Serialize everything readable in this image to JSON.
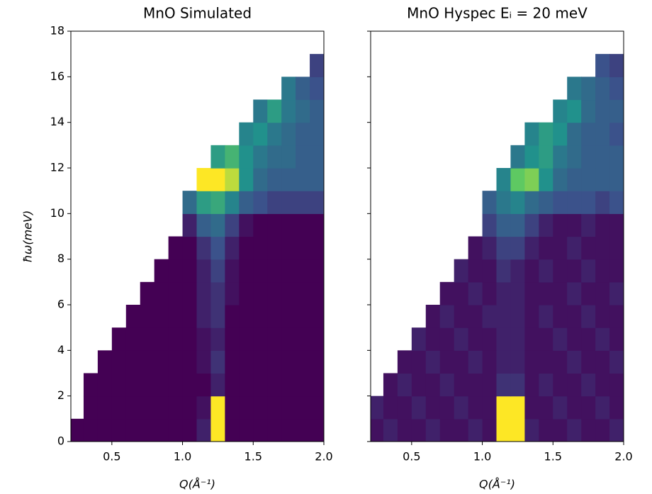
{
  "chart_data": [
    {
      "type": "heatmap",
      "title": "MnO Simulated",
      "xlabel": "Q(Å⁻¹)",
      "ylabel": "ħω(meV)",
      "colormap": "viridis",
      "xlim": [
        0.21,
        2.0
      ],
      "ylim": [
        0,
        18
      ],
      "xticks": [
        0.5,
        {
          "value": 1.0,
          "label": "1.0"
        },
        1.5,
        {
          "value": 2.0,
          "label": "2.0"
        }
      ],
      "yticks": [
        0,
        2,
        4,
        6,
        8,
        10,
        12,
        14,
        16,
        18
      ],
      "xbins": [
        0.2,
        0.3,
        0.4,
        0.5,
        0.6,
        0.7,
        0.8,
        0.9,
        1.0,
        1.1,
        1.2,
        1.3,
        1.4,
        1.5,
        1.6,
        1.7,
        1.8,
        1.9,
        2.0
      ],
      "ybins": [
        0,
        1,
        2,
        3,
        4,
        5,
        6,
        7,
        8,
        9,
        10,
        11,
        12,
        13,
        14,
        15,
        16,
        17,
        18
      ],
      "values": [
        [
          0,
          0,
          0,
          0,
          0,
          0,
          0,
          0,
          0,
          0.1,
          1,
          0,
          0,
          0,
          0,
          0,
          0,
          0
        ],
        [
          null,
          0,
          0,
          0,
          0,
          0,
          0,
          0,
          0,
          0.05,
          1,
          0,
          0,
          0,
          0,
          0,
          0,
          0
        ],
        [
          null,
          0,
          0,
          0,
          0,
          0,
          0,
          0,
          0,
          0,
          0.1,
          0,
          0,
          0,
          0,
          0,
          0,
          0
        ],
        [
          null,
          null,
          0,
          0,
          0,
          0,
          0,
          0,
          0,
          0.05,
          0.15,
          0,
          0,
          0,
          0,
          0,
          0,
          0
        ],
        [
          null,
          null,
          null,
          0,
          0,
          0,
          0,
          0,
          0,
          0.05,
          0.1,
          0,
          0,
          0,
          0,
          0,
          0,
          0
        ],
        [
          null,
          null,
          null,
          null,
          0,
          0,
          0,
          0,
          0,
          0.1,
          0.15,
          0,
          0,
          0,
          0,
          0,
          0,
          0
        ],
        [
          null,
          null,
          null,
          null,
          null,
          0,
          0,
          0,
          0,
          0.1,
          0.15,
          0.05,
          0,
          0,
          0,
          0,
          0,
          0
        ],
        [
          null,
          null,
          null,
          null,
          null,
          null,
          0,
          0,
          0,
          0.1,
          0.2,
          0.05,
          0,
          0,
          0,
          0,
          0,
          0
        ],
        [
          null,
          null,
          null,
          null,
          null,
          null,
          null,
          0,
          0,
          0.15,
          0.25,
          0.1,
          0,
          0,
          0,
          0,
          0,
          0
        ],
        [
          null,
          null,
          null,
          null,
          null,
          null,
          null,
          null,
          0.1,
          0.3,
          0.35,
          0.2,
          0.05,
          0,
          0,
          0,
          0,
          0
        ],
        [
          null,
          null,
          null,
          null,
          null,
          null,
          null,
          null,
          0.35,
          0.55,
          0.6,
          0.45,
          0.3,
          0.25,
          0.2,
          0.2,
          0.2,
          0.2
        ],
        [
          null,
          null,
          null,
          null,
          null,
          null,
          null,
          null,
          null,
          1,
          1,
          0.9,
          0.5,
          0.35,
          0.3,
          0.3,
          0.3,
          0.3
        ],
        [
          null,
          null,
          null,
          null,
          null,
          null,
          null,
          null,
          null,
          null,
          0.55,
          0.65,
          0.5,
          0.4,
          0.35,
          0.35,
          0.3,
          0.3
        ],
        [
          null,
          null,
          null,
          null,
          null,
          null,
          null,
          null,
          null,
          null,
          null,
          null,
          0.45,
          0.5,
          0.4,
          0.35,
          0.3,
          0.3
        ],
        [
          null,
          null,
          null,
          null,
          null,
          null,
          null,
          null,
          null,
          null,
          null,
          null,
          null,
          0.4,
          0.55,
          0.4,
          0.35,
          0.3
        ],
        [
          null,
          null,
          null,
          null,
          null,
          null,
          null,
          null,
          null,
          null,
          null,
          null,
          null,
          null,
          null,
          0.4,
          0.3,
          0.25
        ],
        [
          null,
          null,
          null,
          null,
          null,
          null,
          null,
          null,
          null,
          null,
          null,
          null,
          null,
          null,
          null,
          null,
          null,
          0.2
        ],
        [
          null,
          null,
          null,
          null,
          null,
          null,
          null,
          null,
          null,
          null,
          null,
          null,
          null,
          null,
          null,
          null,
          null,
          null
        ]
      ]
    },
    {
      "type": "heatmap",
      "title": "MnO Hyspec Eᵢ = 20 meV",
      "xlabel": "Q(Å⁻¹)",
      "colormap": "viridis",
      "sharey": true,
      "xlim": [
        0.21,
        2.0
      ],
      "ylim": [
        0,
        18
      ],
      "xticks": [
        0.5,
        {
          "value": 1.0,
          "label": "1.0"
        },
        1.5,
        {
          "value": 2.0,
          "label": "2.0"
        }
      ],
      "xbins": [
        0.2,
        0.3,
        0.4,
        0.5,
        0.6,
        0.7,
        0.8,
        0.9,
        1.0,
        1.1,
        1.2,
        1.3,
        1.4,
        1.5,
        1.6,
        1.7,
        1.8,
        1.9,
        2.0
      ],
      "ybins": [
        0,
        1,
        2,
        3,
        4,
        5,
        6,
        7,
        8,
        9,
        10,
        11,
        12,
        13,
        14,
        15,
        16,
        17,
        18
      ],
      "values": [
        [
          0.05,
          0.1,
          0.05,
          0.05,
          0.1,
          0.05,
          0.05,
          0.1,
          0.05,
          1,
          1,
          0.1,
          0.05,
          0.05,
          0.1,
          0.05,
          0.05,
          0.1
        ],
        [
          0.1,
          0.05,
          0.05,
          0.1,
          0.05,
          0.05,
          0.1,
          0.05,
          0.05,
          1,
          1,
          0.05,
          0.05,
          0.1,
          0.05,
          0.05,
          0.1,
          0.05
        ],
        [
          null,
          0.05,
          0.1,
          0.05,
          0.05,
          0.1,
          0.05,
          0.05,
          0.05,
          0.15,
          0.15,
          0.05,
          0.1,
          0.05,
          0.05,
          0.1,
          0.05,
          0.05
        ],
        [
          null,
          null,
          0.05,
          0.05,
          0.1,
          0.05,
          0.05,
          0.1,
          0.05,
          0.1,
          0.1,
          0.05,
          0.05,
          0.05,
          0.1,
          0.05,
          0.05,
          0.1
        ],
        [
          null,
          null,
          null,
          0.1,
          0.05,
          0.05,
          0.1,
          0.05,
          0.05,
          0.1,
          0.1,
          0.05,
          0.05,
          0.1,
          0.05,
          0.05,
          0.1,
          0.05
        ],
        [
          null,
          null,
          null,
          null,
          0.05,
          0.1,
          0.05,
          0.05,
          0.1,
          0.1,
          0.1,
          0.05,
          0.1,
          0.05,
          0.05,
          0.1,
          0.05,
          0.05
        ],
        [
          null,
          null,
          null,
          null,
          null,
          0.05,
          0.05,
          0.1,
          0.05,
          0.1,
          0.1,
          0.05,
          0.05,
          0.05,
          0.1,
          0.05,
          0.05,
          0.1
        ],
        [
          null,
          null,
          null,
          null,
          null,
          null,
          0.1,
          0.05,
          0.05,
          0.15,
          0.1,
          0.05,
          0.1,
          0.05,
          0.05,
          0.1,
          0.05,
          0.05
        ],
        [
          null,
          null,
          null,
          null,
          null,
          null,
          null,
          0.05,
          0.1,
          0.2,
          0.2,
          0.1,
          0.05,
          0.05,
          0.1,
          0.05,
          0.05,
          0.05
        ],
        [
          null,
          null,
          null,
          null,
          null,
          null,
          null,
          null,
          0.2,
          0.3,
          0.3,
          0.2,
          0.1,
          0.05,
          0.05,
          0.1,
          0.05,
          0.05
        ],
        [
          null,
          null,
          null,
          null,
          null,
          null,
          null,
          null,
          0.3,
          0.4,
          0.45,
          0.35,
          0.3,
          0.25,
          0.25,
          0.25,
          0.2,
          0.25
        ],
        [
          null,
          null,
          null,
          null,
          null,
          null,
          null,
          null,
          null,
          0.45,
          0.75,
          0.8,
          0.5,
          0.35,
          0.3,
          0.3,
          0.3,
          0.3
        ],
        [
          null,
          null,
          null,
          null,
          null,
          null,
          null,
          null,
          null,
          null,
          0.4,
          0.5,
          0.55,
          0.4,
          0.35,
          0.3,
          0.3,
          0.3
        ],
        [
          null,
          null,
          null,
          null,
          null,
          null,
          null,
          null,
          null,
          null,
          null,
          0.45,
          0.55,
          0.5,
          0.35,
          0.3,
          0.3,
          0.25
        ],
        [
          null,
          null,
          null,
          null,
          null,
          null,
          null,
          null,
          null,
          null,
          null,
          null,
          null,
          0.45,
          0.5,
          0.35,
          0.3,
          0.3
        ],
        [
          null,
          null,
          null,
          null,
          null,
          null,
          null,
          null,
          null,
          null,
          null,
          null,
          null,
          null,
          0.4,
          0.35,
          0.3,
          0.25
        ],
        [
          null,
          null,
          null,
          null,
          null,
          null,
          null,
          null,
          null,
          null,
          null,
          null,
          null,
          null,
          null,
          null,
          0.25,
          0.2
        ],
        [
          null,
          null,
          null,
          null,
          null,
          null,
          null,
          null,
          null,
          null,
          null,
          null,
          null,
          null,
          null,
          null,
          null,
          null
        ]
      ]
    }
  ]
}
